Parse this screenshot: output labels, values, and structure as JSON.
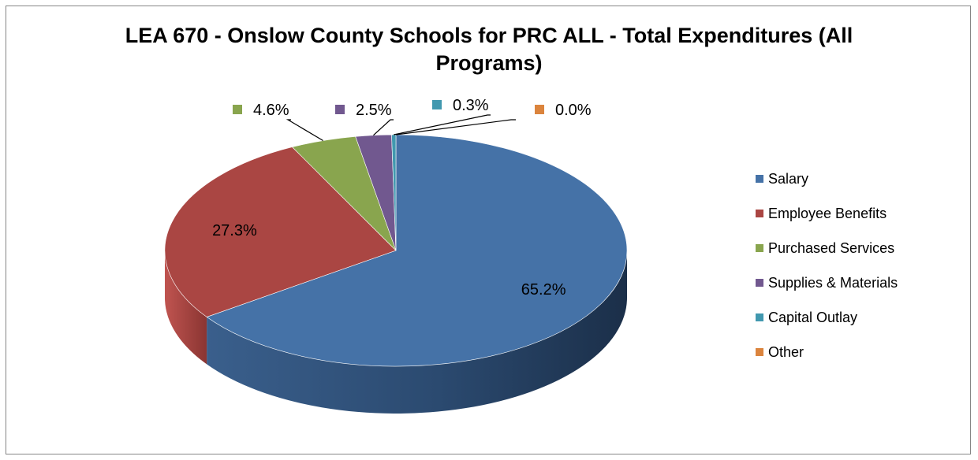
{
  "chart_data": {
    "type": "pie",
    "title": "LEA 670 - Onslow County Schools for PRC ALL - Total Expenditures (All Programs)",
    "categories": [
      "Salary",
      "Employee Benefits",
      "Purchased Services",
      "Supplies & Materials",
      "Capital Outlay",
      "Other"
    ],
    "values": [
      65.2,
      27.3,
      4.6,
      2.5,
      0.3,
      0.0
    ],
    "labels": [
      "65.2%",
      "27.3%",
      "4.6%",
      "2.5%",
      "0.3%",
      "0.0%"
    ],
    "colors": [
      "#4572A7",
      "#AA4643",
      "#89A54E",
      "#71588F",
      "#4198AF",
      "#DB843D"
    ],
    "legend": "right",
    "style": "3d"
  }
}
